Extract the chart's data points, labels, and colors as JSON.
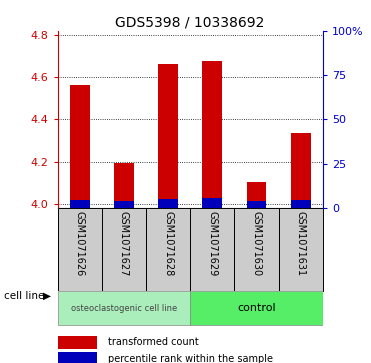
{
  "title": "GDS5398 / 10338692",
  "samples": [
    "GSM1071626",
    "GSM1071627",
    "GSM1071628",
    "GSM1071629",
    "GSM1071630",
    "GSM1071631"
  ],
  "red_values": [
    4.565,
    4.195,
    4.665,
    4.675,
    4.105,
    4.335
  ],
  "blue_values": [
    4.02,
    4.015,
    4.025,
    4.03,
    4.015,
    4.02
  ],
  "ylim_left": [
    3.98,
    4.82
  ],
  "ylim_right": [
    0,
    100
  ],
  "yticks_left": [
    4.0,
    4.2,
    4.4,
    4.6,
    4.8
  ],
  "yticks_right": [
    0,
    25,
    50,
    75,
    100
  ],
  "ytick_labels_right": [
    "0",
    "25",
    "50",
    "75",
    "100%"
  ],
  "left_color": "#cc0000",
  "right_color": "#0000cc",
  "bar_width": 0.45,
  "group1_label": "osteoclastogenic cell line",
  "group2_label": "control",
  "group1_color": "#aaeebb",
  "group2_color": "#55ee66",
  "cell_line_label": "cell line",
  "legend_red": "transformed count",
  "legend_blue": "percentile rank within the sample",
  "background_color": "#ffffff",
  "label_box_color": "#cccccc",
  "title_fontsize": 10,
  "tick_fontsize": 8,
  "sample_fontsize": 7
}
